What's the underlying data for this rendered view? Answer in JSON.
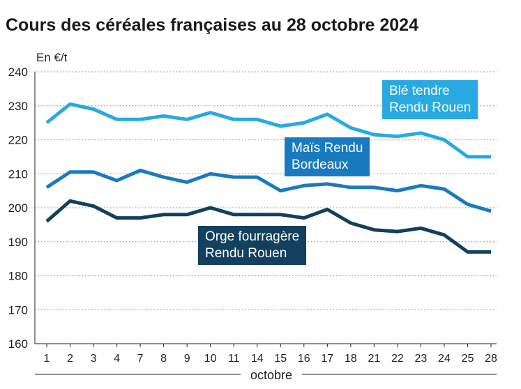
{
  "title": "Cours des céréales françaises au 28 octobre 2024",
  "chart_data": {
    "type": "line",
    "title": "Cours des céréales françaises au 28 octobre 2024",
    "ylabel": "En €/t",
    "xlabel": "octobre",
    "ylim": [
      160,
      240
    ],
    "yticks": [
      "160",
      "170",
      "180",
      "190",
      "200",
      "210",
      "220",
      "230",
      "240"
    ],
    "grid": "horizontal dotted",
    "categories": [
      "1",
      "2",
      "3",
      "4",
      "7",
      "8",
      "9",
      "10",
      "11",
      "14",
      "15",
      "16",
      "17",
      "18",
      "21",
      "22",
      "23",
      "24",
      "25",
      "28"
    ],
    "series": [
      {
        "name": "Blé tendre Rendu Rouen",
        "label_lines": [
          "Blé tendre",
          "Rendu Rouen"
        ],
        "color": "#29a9e1",
        "values": [
          225,
          230.5,
          229,
          226,
          226,
          227,
          226,
          228,
          226,
          226,
          224,
          225,
          227.5,
          223.5,
          221.5,
          221,
          222,
          220,
          215,
          215
        ]
      },
      {
        "name": "Maïs Rendu Bordeaux",
        "label_lines": [
          "Maïs Rendu",
          "Bordeaux"
        ],
        "color": "#1a7ac0",
        "values": [
          206,
          210.5,
          210.5,
          208,
          211,
          209,
          207.5,
          210,
          209,
          209,
          205,
          206.5,
          207,
          206,
          206,
          205,
          206.5,
          205.5,
          201,
          199
        ]
      },
      {
        "name": "Orge fourragère Rendu Rouen",
        "label_lines": [
          "Orge fourragère",
          "Rendu Rouen"
        ],
        "color": "#12405e",
        "values": [
          196,
          202,
          200.5,
          197,
          197,
          198,
          198,
          200,
          198,
          198,
          198,
          197,
          199.5,
          195.5,
          193.5,
          193,
          194,
          192,
          187,
          187
        ]
      }
    ]
  }
}
